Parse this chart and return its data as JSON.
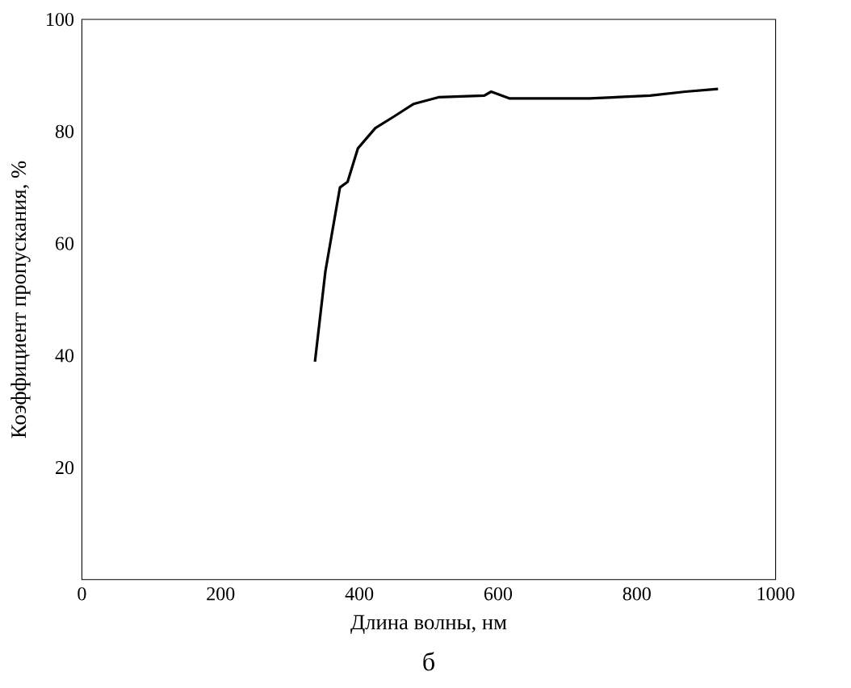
{
  "chart_data": {
    "type": "line",
    "xlabel": "Длина волны, нм",
    "ylabel": "Коэффициент пропускания, %",
    "annotations": [
      "б"
    ],
    "xlim": [
      0,
      1000
    ],
    "ylim": [
      0,
      100
    ],
    "xticks": [
      0,
      200,
      400,
      600,
      800,
      1000
    ],
    "yticks": [
      20,
      40,
      60,
      80,
      100
    ],
    "series": [
      {
        "color": "#000000",
        "x": [
          336,
          351,
          372,
          383,
          398,
          423,
          449,
          478,
          514,
          580,
          590,
          616,
          732,
          819,
          870,
          917
        ],
        "values": [
          38.9,
          55,
          70,
          71,
          77,
          80.6,
          82.6,
          84.9,
          86.1,
          86.4,
          87.1,
          85.9,
          85.9,
          86.4,
          87.1,
          87.6
        ]
      }
    ],
    "grid": false,
    "marker": "none",
    "line_style": "solid"
  }
}
